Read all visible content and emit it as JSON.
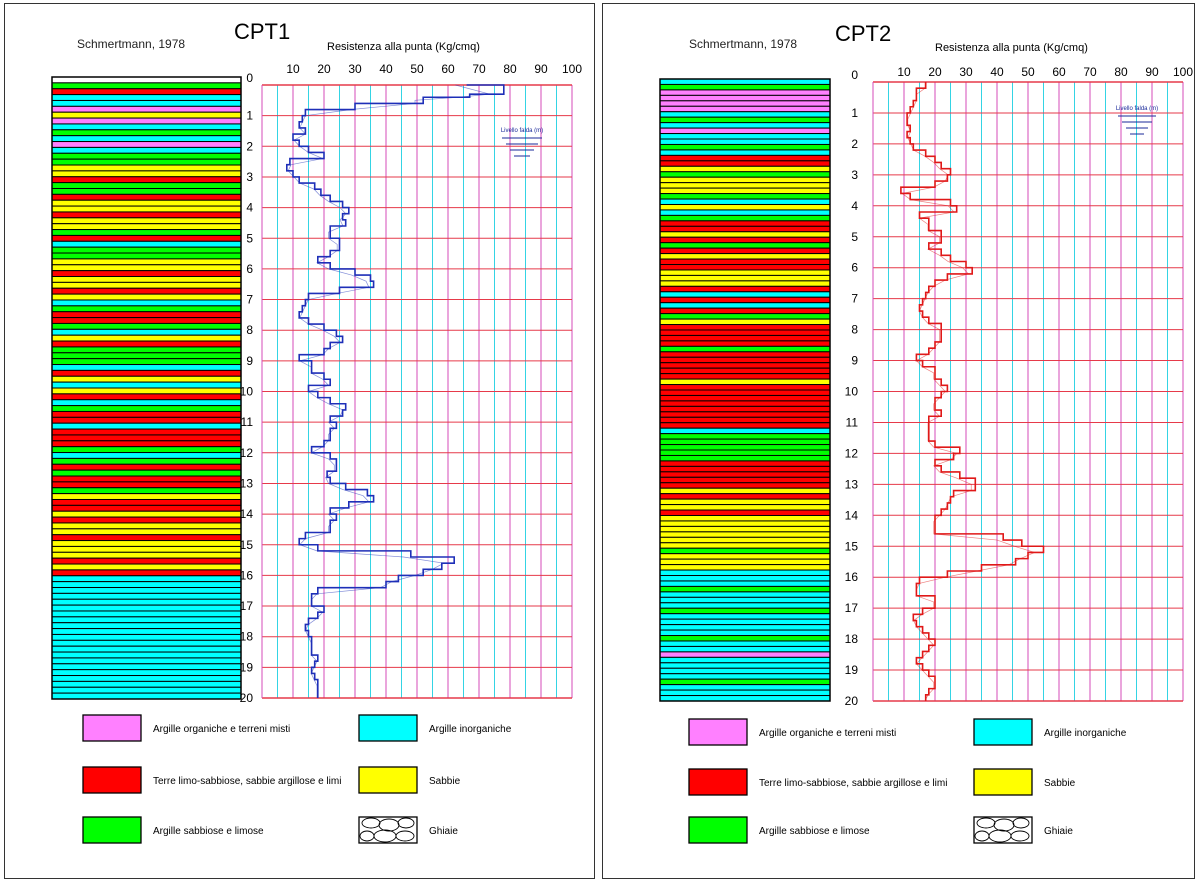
{
  "charts": [
    {
      "id": "cpt1",
      "author": "Schmertmann, 1978",
      "title": "CPT1",
      "xlabel": "Resistenza alla punta (Kg/cmq)",
      "water_table_label": "Livello falda (m)",
      "line_color": "#1e2fb8",
      "layers_colors_top_to_bottom": [
        "#ffffff",
        "#00ff00",
        "#ff0000",
        "#00ffff",
        "#00ffff",
        "#ff80ff",
        "#ffff00",
        "#ff80ff",
        "#00ffff",
        "#00ff00",
        "#00ffff",
        "#ff80ff",
        "#00ffff",
        "#00ff00",
        "#00ff00",
        "#ffff00",
        "#ffff00",
        "#ff0000",
        "#00ff00",
        "#00ff00",
        "#ff0000",
        "#ffff00",
        "#ffff00",
        "#ff0000",
        "#ffff00",
        "#ffff00",
        "#00ff00",
        "#ff0000",
        "#00ffff",
        "#00ff00",
        "#00ff00",
        "#ffff00",
        "#ffff00",
        "#ff0000",
        "#ffff00",
        "#ffff00",
        "#ff0000",
        "#ffff00",
        "#00ffff",
        "#00ff00",
        "#ff0000",
        "#ff0000",
        "#00ff00",
        "#00ffff",
        "#ffff00",
        "#ff0000",
        "#00ff00",
        "#00ff00",
        "#00ff00",
        "#00ffff",
        "#ff0000",
        "#ffff00",
        "#00ffff",
        "#ffff00",
        "#ff0000",
        "#00ffff",
        "#00ff00",
        "#ff0000",
        "#ff0000",
        "#00ffff",
        "#ff0000",
        "#ff0000",
        "#ff0000",
        "#00ff00",
        "#00ffff",
        "#00ff00",
        "#ff0000",
        "#00ff00",
        "#ff0000",
        "#ff0000",
        "#00ff00",
        "#ffff00",
        "#ff0000",
        "#ff0000",
        "#ffff00",
        "#ff0000",
        "#ffff00",
        "#ffff00",
        "#ff0000",
        "#ffff00",
        "#ffff00",
        "#ffff00",
        "#ff0000",
        "#ffff00",
        "#ff0000",
        "#00ffff",
        "#00ffff",
        "#00ffff",
        "#00ffff",
        "#00ffff",
        "#00ffff",
        "#00ffff",
        "#00ffff",
        "#00ffff",
        "#00ffff",
        "#00ffff",
        "#00ffff",
        "#00ffff",
        "#00ffff",
        "#00ffff",
        "#00ffff",
        "#00ffff",
        "#00ffff",
        "#00ffff",
        "#00ffff",
        "#00ffff"
      ],
      "cone_resistance_profile": {
        "depth": [
          0.0,
          0.3,
          0.4,
          0.5,
          0.6,
          0.8,
          1.0,
          1.2,
          1.4,
          1.6,
          1.8,
          2.0,
          2.2,
          2.4,
          2.6,
          2.8,
          3.0,
          3.2,
          3.4,
          3.6,
          3.8,
          4.0,
          4.2,
          4.4,
          4.6,
          4.8,
          5.0,
          5.2,
          5.4,
          5.6,
          5.8,
          6.0,
          6.2,
          6.4,
          6.6,
          6.8,
          7.0,
          7.2,
          7.4,
          7.6,
          7.8,
          8.0,
          8.2,
          8.4,
          8.6,
          8.8,
          9.0,
          9.2,
          9.4,
          9.6,
          9.8,
          10.0,
          10.2,
          10.4,
          10.6,
          10.8,
          11.0,
          11.2,
          11.4,
          11.6,
          11.8,
          12.0,
          12.2,
          12.4,
          12.6,
          12.8,
          13.0,
          13.2,
          13.4,
          13.6,
          13.8,
          14.0,
          14.2,
          14.4,
          14.6,
          14.8,
          15.0,
          15.2,
          15.4,
          15.6,
          15.8,
          16.0,
          16.2,
          16.4,
          16.6,
          16.8,
          17.0,
          17.2,
          17.4,
          17.6,
          17.8,
          18.0,
          18.2,
          18.4,
          18.6,
          18.8,
          19.0,
          19.2,
          19.4,
          19.6,
          19.8,
          20.0
        ],
        "qc": [
          66,
          78,
          67,
          52,
          52,
          30,
          14,
          13,
          12,
          14,
          10,
          12,
          15,
          20,
          9,
          8,
          10,
          12,
          17,
          19,
          22,
          26,
          28,
          26,
          27,
          22,
          22,
          25,
          25,
          22,
          18,
          22,
          30,
          35,
          36,
          25,
          15,
          14,
          13,
          12,
          15,
          20,
          24,
          26,
          22,
          20,
          12,
          16,
          16,
          20,
          22,
          15,
          18,
          22,
          27,
          26,
          22,
          24,
          22,
          22,
          20,
          16,
          22,
          24,
          24,
          21,
          22,
          27,
          34,
          36,
          28,
          22,
          24,
          22,
          22,
          14,
          12,
          18,
          48,
          62,
          58,
          52,
          44,
          40,
          18,
          16,
          16,
          20,
          18,
          15,
          14,
          15,
          16,
          16,
          16,
          18,
          17,
          16,
          17,
          18,
          18,
          18
        ]
      }
    },
    {
      "id": "cpt2",
      "author": "Schmertmann, 1978",
      "title": "CPT2",
      "xlabel": "Resistenza alla punta (Kg/cmq)",
      "water_table_label": "Livello falda (m)",
      "line_color": "#e01818",
      "layers_colors_top_to_bottom": [
        "#00ffff",
        "#00ff00",
        "#ff80ff",
        "#ff80ff",
        "#ff80ff",
        "#ff80ff",
        "#00ffff",
        "#00ff00",
        "#00ffff",
        "#ff80ff",
        "#00ffff",
        "#00ffff",
        "#00ff00",
        "#00ffff",
        "#ff0000",
        "#ff0000",
        "#ffff00",
        "#00ff00",
        "#ffff00",
        "#ffff00",
        "#ffff00",
        "#00ff00",
        "#00ffff",
        "#ffff00",
        "#00ffff",
        "#00ff00",
        "#ff0000",
        "#ff0000",
        "#ffff00",
        "#ff0000",
        "#00ff00",
        "#ff0000",
        "#ffff00",
        "#ff0000",
        "#ff0000",
        "#ffff00",
        "#ffff00",
        "#ffff00",
        "#ff0000",
        "#00ffff",
        "#ff0000",
        "#00ffff",
        "#ff0000",
        "#00ff00",
        "#ffff00",
        "#ff0000",
        "#ff0000",
        "#ff0000",
        "#ff0000",
        "#00ff00",
        "#ff0000",
        "#ff0000",
        "#ff0000",
        "#ff0000",
        "#ff0000",
        "#ffff00",
        "#ff0000",
        "#ff0000",
        "#ff0000",
        "#ff0000",
        "#ff0000",
        "#ff0000",
        "#ff0000",
        "#ff0000",
        "#00ffff",
        "#00ff00",
        "#00ff00",
        "#00ff00",
        "#00ff00",
        "#00ff00",
        "#ff0000",
        "#ff0000",
        "#ff0000",
        "#ff0000",
        "#ff0000",
        "#ffff00",
        "#ff0000",
        "#ffff00",
        "#ffff00",
        "#ff0000",
        "#ffff00",
        "#ffff00",
        "#ffff00",
        "#ffff00",
        "#ffff00",
        "#ffff00",
        "#00ff00",
        "#ffff00",
        "#ffff00",
        "#ffff00",
        "#00ffff",
        "#00ffff",
        "#00ffff",
        "#00ff00",
        "#00ffff",
        "#00ffff",
        "#00ffff",
        "#00ff00",
        "#00ffff",
        "#00ffff",
        "#00ffff",
        "#00ffff",
        "#00ff00",
        "#00ffff",
        "#00ffff",
        "#ff80ff",
        "#00ffff",
        "#00ffff",
        "#00ffff",
        "#00ffff",
        "#00ff00",
        "#00ffff",
        "#00ffff",
        "#00ffff"
      ],
      "cone_resistance_profile": {
        "depth": [
          0.0,
          0.2,
          0.4,
          0.6,
          0.8,
          1.0,
          1.2,
          1.4,
          1.6,
          1.8,
          2.0,
          2.2,
          2.4,
          2.6,
          2.8,
          3.0,
          3.2,
          3.4,
          3.6,
          3.8,
          4.0,
          4.2,
          4.4,
          4.6,
          4.8,
          5.0,
          5.2,
          5.4,
          5.6,
          5.8,
          6.0,
          6.2,
          6.4,
          6.6,
          6.8,
          7.0,
          7.2,
          7.4,
          7.6,
          7.8,
          8.0,
          8.2,
          8.4,
          8.6,
          8.8,
          9.0,
          9.2,
          9.4,
          9.6,
          9.8,
          10.0,
          10.2,
          10.4,
          10.6,
          10.8,
          11.0,
          11.2,
          11.4,
          11.6,
          11.8,
          12.0,
          12.2,
          12.4,
          12.6,
          12.8,
          13.0,
          13.2,
          13.4,
          13.6,
          13.8,
          14.0,
          14.2,
          14.4,
          14.6,
          14.8,
          15.0,
          15.2,
          15.4,
          15.6,
          15.8,
          16.0,
          16.2,
          16.4,
          16.6,
          16.8,
          17.0,
          17.2,
          17.4,
          17.6,
          17.8,
          18.0,
          18.2,
          18.4,
          18.6,
          18.8,
          19.0,
          19.2,
          19.4,
          19.6,
          19.8,
          20.0
        ],
        "qc": [
          17,
          17,
          14,
          14,
          13,
          12,
          11,
          11,
          12,
          11,
          12,
          13,
          17,
          20,
          22,
          25,
          24,
          20,
          9,
          12,
          25,
          27,
          15,
          18,
          18,
          22,
          22,
          18,
          22,
          25,
          30,
          32,
          24,
          20,
          18,
          17,
          16,
          15,
          16,
          18,
          22,
          22,
          22,
          20,
          18,
          14,
          16,
          20,
          20,
          22,
          24,
          22,
          20,
          20,
          22,
          18,
          18,
          18,
          18,
          20,
          28,
          26,
          20,
          22,
          28,
          33,
          33,
          26,
          25,
          24,
          22,
          20,
          20,
          20,
          42,
          48,
          55,
          50,
          46,
          35,
          24,
          15,
          14,
          14,
          20,
          20,
          16,
          13,
          14,
          16,
          18,
          20,
          18,
          16,
          14,
          16,
          18,
          20,
          20,
          18,
          17
        ]
      }
    }
  ],
  "legend": [
    {
      "label": "Argille organiche e terreni misti",
      "color": "#ff80ff"
    },
    {
      "label": "Argille inorganiche",
      "color": "#00ffff"
    },
    {
      "label": "Terre limo-sabbiose, sabbie argillose e limi",
      "color": "#ff0000"
    },
    {
      "label": "Sabbie",
      "color": "#ffff00"
    },
    {
      "label": "Argille sabbiose e limose",
      "color": "#00ff00"
    },
    {
      "label": "Ghiaie",
      "color": "pattern-gravel"
    }
  ],
  "chart_data": [
    {
      "type": "line",
      "title": "CPT1",
      "xlabel": "Resistenza alla punta (Kg/cmq)",
      "ylabel": "",
      "xlim": [
        0,
        100
      ],
      "ylim": [
        0,
        20
      ],
      "x_ticks": [
        "10",
        "20",
        "30",
        "40",
        "50",
        "60",
        "70",
        "80",
        "90",
        "100"
      ],
      "y_ticks": [
        "0",
        "1",
        "2",
        "3",
        "4",
        "5",
        "6",
        "7",
        "8",
        "9",
        "10",
        "11",
        "12",
        "13",
        "14",
        "15",
        "16",
        "17",
        "18",
        "19",
        "20"
      ],
      "grid": true,
      "series_ref": "charts.0.cone_resistance_profile"
    },
    {
      "type": "line",
      "title": "CPT2",
      "xlabel": "Resistenza alla punta (Kg/cmq)",
      "ylabel": "",
      "xlim": [
        0,
        100
      ],
      "ylim": [
        0,
        20
      ],
      "x_ticks": [
        "10",
        "20",
        "30",
        "40",
        "50",
        "60",
        "70",
        "80",
        "90",
        "100"
      ],
      "y_ticks": [
        "0",
        "1",
        "2",
        "3",
        "4",
        "5",
        "6",
        "7",
        "8",
        "9",
        "10",
        "11",
        "12",
        "13",
        "14",
        "15",
        "16",
        "17",
        "18",
        "19",
        "20"
      ],
      "grid": true,
      "series_ref": "charts.1.cone_resistance_profile"
    }
  ]
}
